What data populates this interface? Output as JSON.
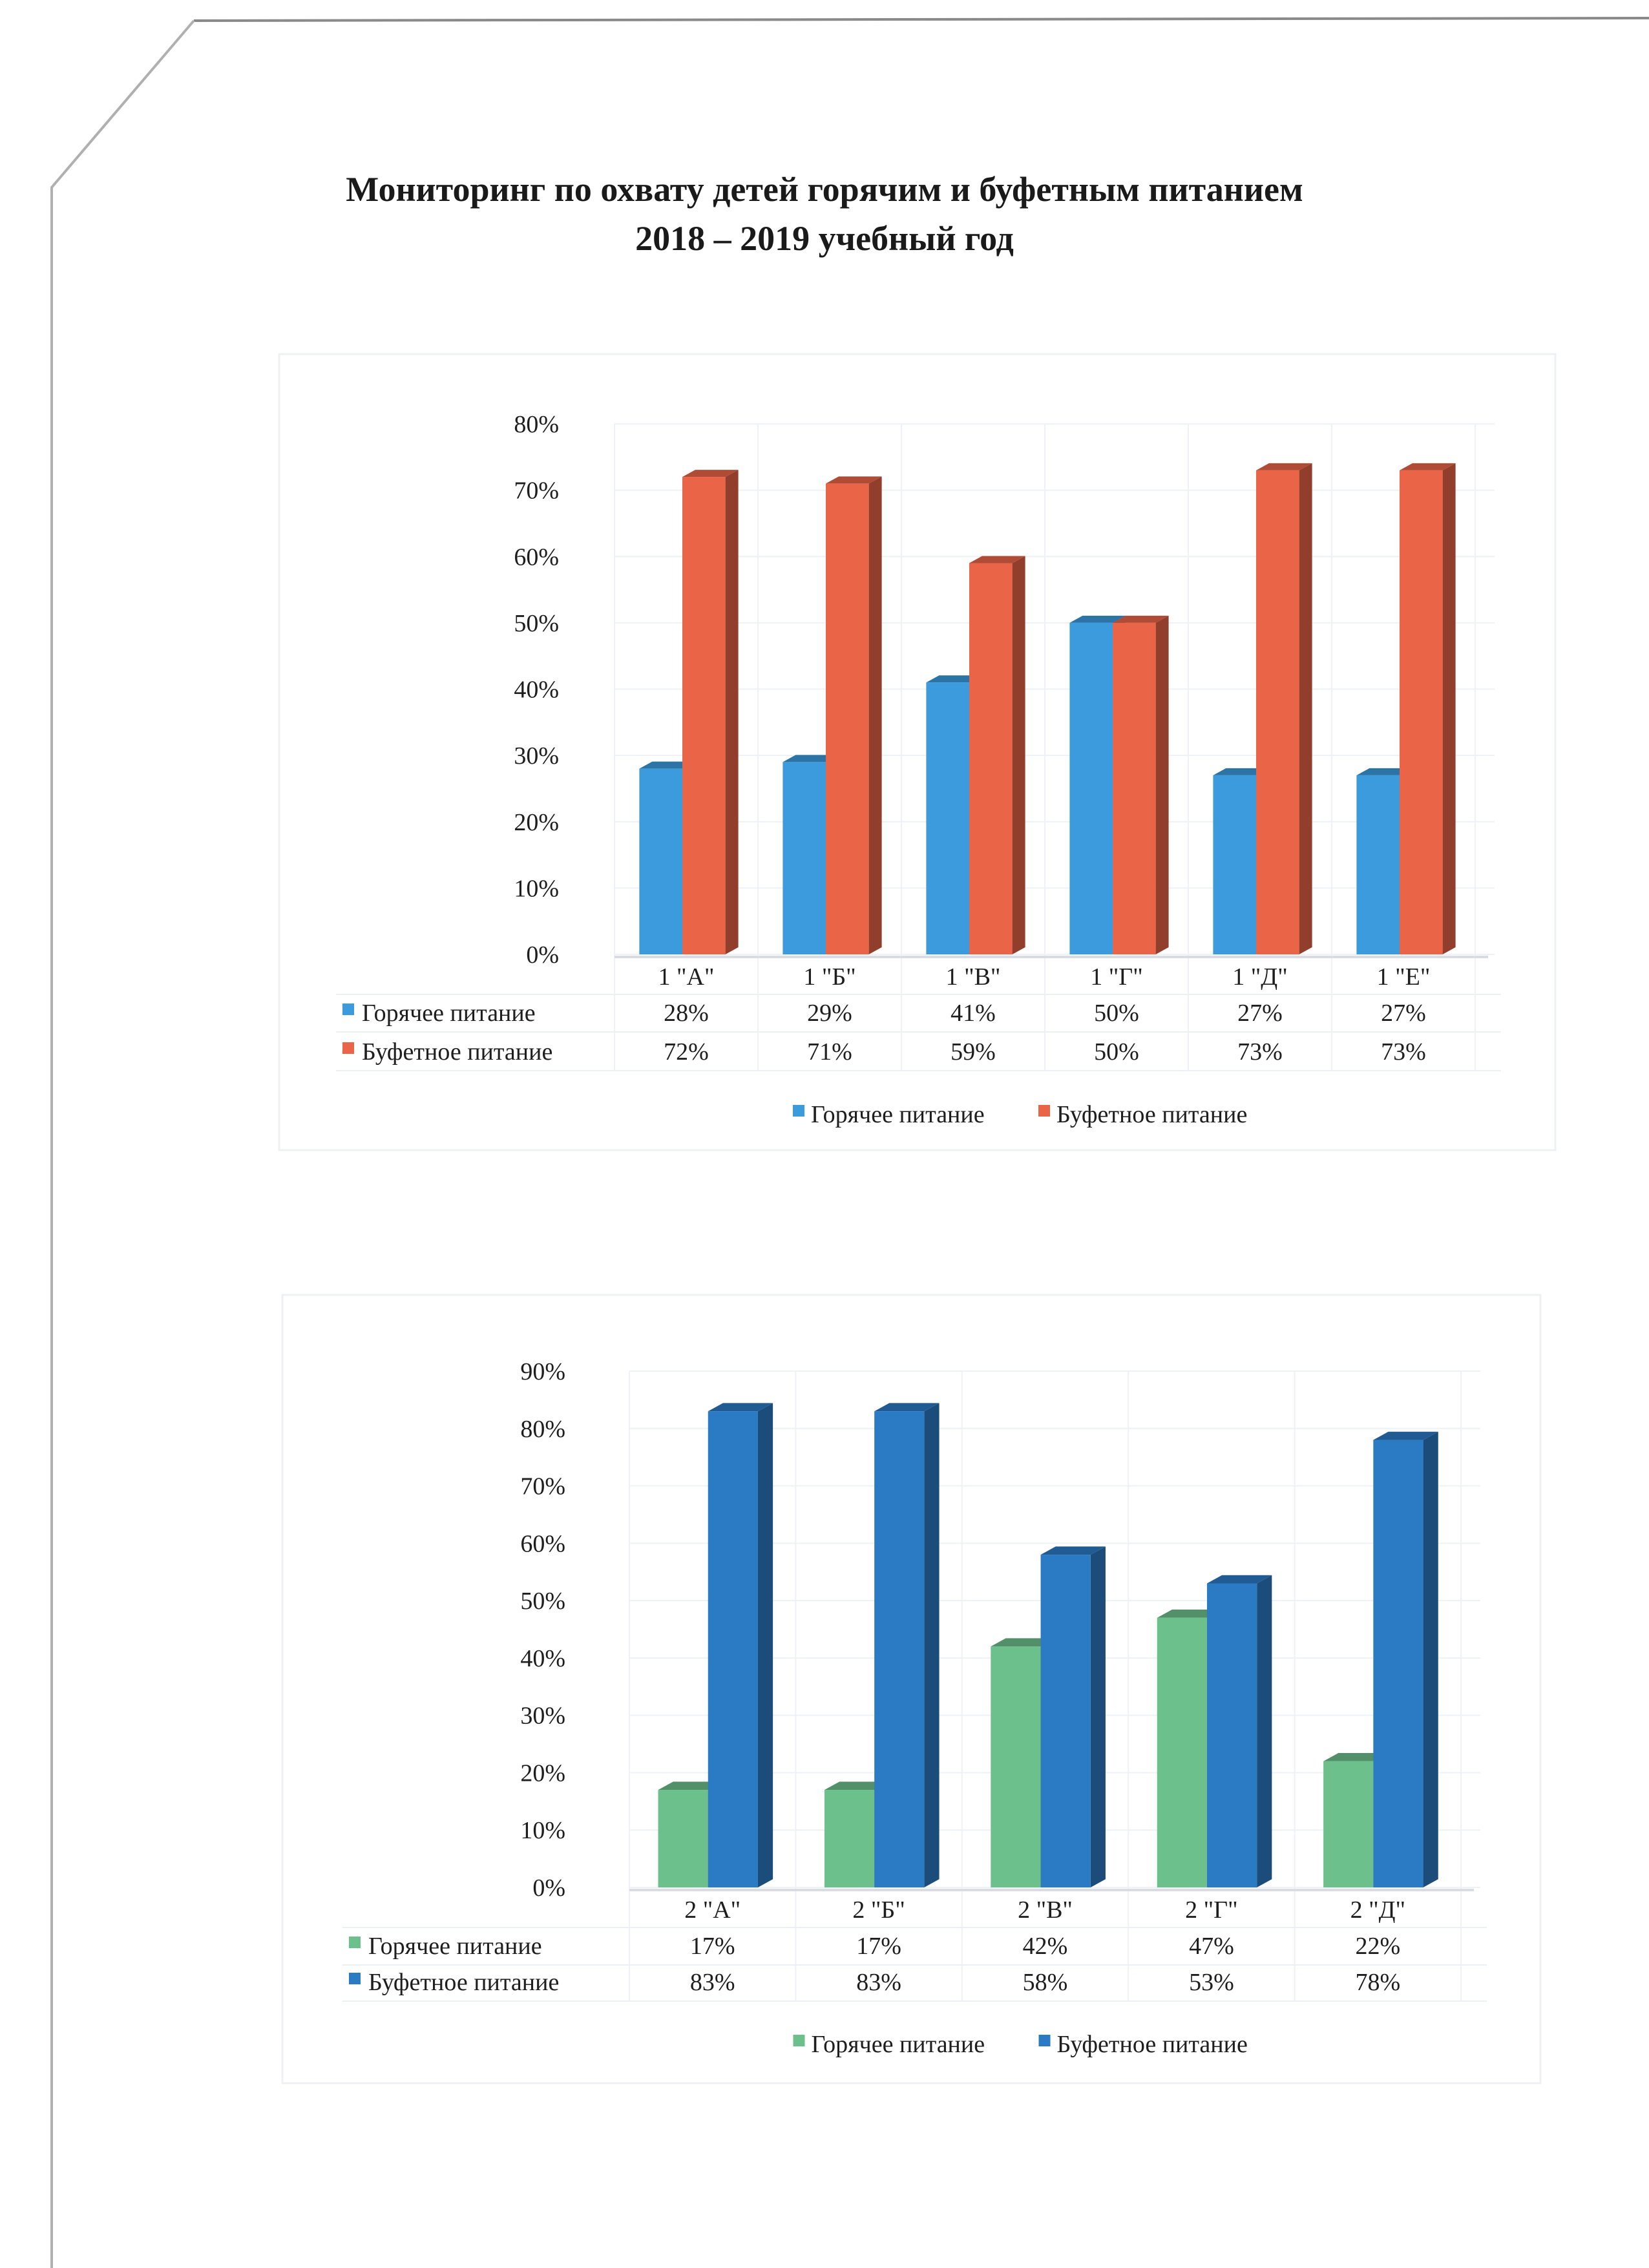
{
  "title": {
    "line1": "Мониторинг по охвату детей горячим и буфетным питанием",
    "line2": "2018 – 2019 учебный год"
  },
  "chart_data": [
    {
      "type": "bar",
      "title": "",
      "categories": [
        "1 \"А\"",
        "1 \"Б\"",
        "1 \"В\"",
        "1 \"Г\"",
        "1 \"Д\"",
        "1 \"Е\""
      ],
      "series": [
        {
          "name": "Горячее питание",
          "values": [
            28,
            29,
            41,
            50,
            27,
            27
          ],
          "labels": [
            "28%",
            "29%",
            "41%",
            "50%",
            "27%",
            "27%"
          ],
          "color": "#3b9bdc"
        },
        {
          "name": "Буфетное питание",
          "values": [
            72,
            71,
            59,
            50,
            73,
            73
          ],
          "labels": [
            "72%",
            "71%",
            "59%",
            "50%",
            "73%",
            "73%"
          ],
          "color": "#ea6448"
        }
      ],
      "yticks": [
        "0%",
        "10%",
        "20%",
        "30%",
        "40%",
        "50%",
        "60%",
        "70%",
        "80%"
      ],
      "ylim": [
        0,
        80
      ],
      "xlabel": "",
      "ylabel": "",
      "grid": true,
      "legend": "bottom",
      "data_table": true
    },
    {
      "type": "bar",
      "title": "",
      "categories": [
        "2 \"А\"",
        "2 \"Б\"",
        "2 \"В\"",
        "2 \"Г\"",
        "2 \"Д\""
      ],
      "series": [
        {
          "name": "Горячее питание",
          "values": [
            17,
            17,
            42,
            47,
            22
          ],
          "labels": [
            "17%",
            "17%",
            "42%",
            "47%",
            "22%"
          ],
          "color": "#6cc08c"
        },
        {
          "name": "Буфетное питание",
          "values": [
            83,
            83,
            58,
            53,
            78
          ],
          "labels": [
            "83%",
            "83%",
            "58%",
            "53%",
            "78%"
          ],
          "color": "#2b7bc4"
        }
      ],
      "yticks": [
        "0%",
        "10%",
        "20%",
        "30%",
        "40%",
        "50%",
        "60%",
        "70%",
        "80%",
        "90%"
      ],
      "ylim": [
        0,
        90
      ],
      "xlabel": "",
      "ylabel": "",
      "grid": true,
      "legend": "bottom",
      "data_table": true
    }
  ]
}
